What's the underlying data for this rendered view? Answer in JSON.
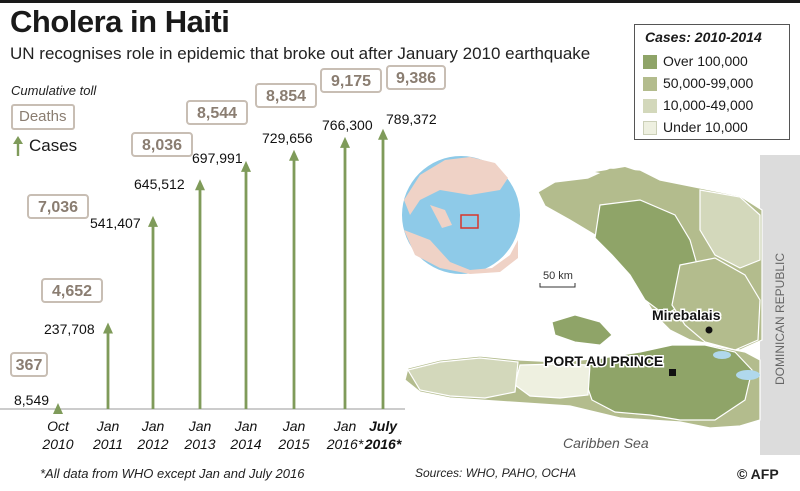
{
  "header": {
    "title": "Cholera in Haiti",
    "subtitle": "UN recognises role in epidemic that broke out after January 2010 earthquake"
  },
  "legend_left": {
    "caption": "Cumulative toll",
    "deaths_label": "Deaths",
    "cases_label": "Cases"
  },
  "legend_right": {
    "title": "Cases: 2010-2014",
    "items": [
      {
        "label": "Over 100,000",
        "color": "#8fa468"
      },
      {
        "label": "50,000-99,000",
        "color": "#b3bc8d"
      },
      {
        "label": "10,000-49,000",
        "color": "#d3d8bb"
      },
      {
        "label": "Under 10,000",
        "color": "#eef0e0"
      }
    ]
  },
  "chart_data": {
    "type": "bar",
    "title": "Cumulative toll",
    "categories": [
      {
        "line1": "Oct",
        "line2": "2010",
        "bold": false
      },
      {
        "line1": "Jan",
        "line2": "2011",
        "bold": false
      },
      {
        "line1": "Jan",
        "line2": "2012",
        "bold": false
      },
      {
        "line1": "Jan",
        "line2": "2013",
        "bold": false
      },
      {
        "line1": "Jan",
        "line2": "2014",
        "bold": false
      },
      {
        "line1": "Jan",
        "line2": "2015",
        "bold": false
      },
      {
        "line1": "Jan",
        "line2": "2016*",
        "bold": false
      },
      {
        "line1": "July",
        "line2": "2016*",
        "bold": true
      }
    ],
    "series": [
      {
        "name": "Cases",
        "values": [
          8549,
          237708,
          541407,
          645512,
          697991,
          729656,
          766300,
          789372
        ],
        "labels": [
          "8,549",
          "237,708",
          "541,407",
          "645,512",
          "697,991",
          "729,656",
          "766,300",
          "789,372"
        ]
      },
      {
        "name": "Deaths",
        "values": [
          367,
          4652,
          7036,
          8036,
          8544,
          8854,
          9175,
          9386
        ],
        "labels": [
          "367",
          "4,652",
          "7,036",
          "8,036",
          "8,544",
          "8,854",
          "9,175",
          "9,386"
        ]
      }
    ],
    "ylim": [
      0,
      800000
    ],
    "colors": {
      "arrow": "#7f9b5a",
      "deaths_border": "#c8beb4",
      "deaths_text": "#8a7d71"
    }
  },
  "map": {
    "sea_label": "Caribben Sea",
    "scale_label": "50 km",
    "dominican_label": "DOMINICAN REPUBLIC",
    "cities": [
      {
        "name": "Mirebalais"
      },
      {
        "name": "PORT AU PRINCE"
      }
    ]
  },
  "footer": {
    "footnote": "*All data from WHO except Jan and July 2016",
    "sources": "Sources: WHO, PAHO, OCHA",
    "credit": "© AFP"
  }
}
